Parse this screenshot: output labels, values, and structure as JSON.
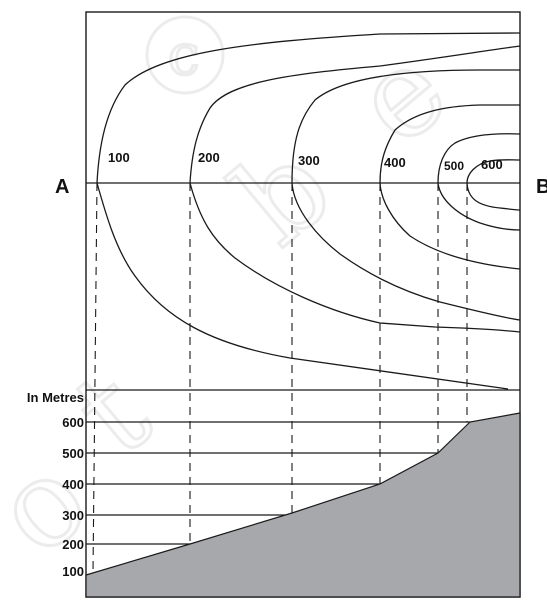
{
  "diagram": {
    "point_a": "A",
    "point_b": "B",
    "axis_title": "In Metres",
    "contour_labels": [
      "100",
      "200",
      "300",
      "400",
      "500",
      "600"
    ],
    "height_labels": [
      "600",
      "500",
      "400",
      "300",
      "200",
      "100"
    ],
    "watermark": "© not to be republished",
    "colors": {
      "ground": "#a7a8ab",
      "line": "#1a1a1a",
      "background": "#ffffff"
    }
  }
}
